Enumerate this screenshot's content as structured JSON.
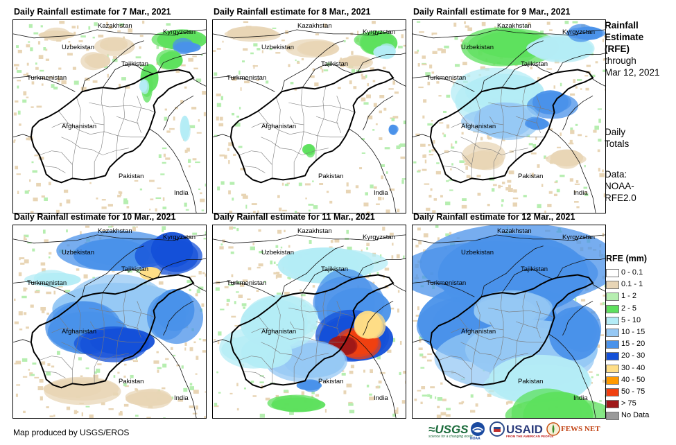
{
  "panels": [
    {
      "id": "p1",
      "title": "Daily Rainfall estimate for 7 Mar., 2021",
      "intensity": 0
    },
    {
      "id": "p2",
      "title": "Daily Rainfall estimate for 8 Mar., 2021",
      "intensity": 1
    },
    {
      "id": "p3",
      "title": "Daily Rainfall estimate for 9 Mar., 2021",
      "intensity": 2
    },
    {
      "id": "p4",
      "title": "Daily Rainfall estimate for 10 Mar., 2021",
      "intensity": 3
    },
    {
      "id": "p5",
      "title": "Daily Rainfall estimate for 11 Mar., 2021",
      "intensity": 4
    },
    {
      "id": "p6",
      "title": "Daily Rainfall estimate for 12 Mar., 2021",
      "intensity": 5
    }
  ],
  "countries": {
    "kazakhstan": "Kazakhstan",
    "kyrgyzstan": "Kyrgyzstan",
    "uzbekistan": "Uzbekistan",
    "tajikistan": "Tajikistan",
    "turkmenistan": "Turkmenistan",
    "afghanistan": "Afghanistan",
    "pakistan": "Pakistan",
    "india": "India"
  },
  "side": {
    "title_line1": "Rainfall",
    "title_line2": "Estimate",
    "title_line3": "(RFE)",
    "through_line1": "through",
    "through_line2": "Mar 12, 2021",
    "daily_line1": "Daily",
    "daily_line2": "Totals",
    "data_line1": "Data:",
    "data_line2": "NOAA-",
    "data_line3": "RFE2.0"
  },
  "legend": {
    "title": "RFE (mm)",
    "items": [
      {
        "label": "0 - 0.1",
        "color": "#ffffff"
      },
      {
        "label": "0.1 - 1",
        "color": "#e8d5b5"
      },
      {
        "label": "1 - 2",
        "color": "#b6eeb0"
      },
      {
        "label": "2 - 5",
        "color": "#5ee05e"
      },
      {
        "label": "5 - 10",
        "color": "#b4ecf6"
      },
      {
        "label": "10 - 15",
        "color": "#96c8f4"
      },
      {
        "label": "15 - 20",
        "color": "#4a92ea"
      },
      {
        "label": "20 - 30",
        "color": "#1450d8"
      },
      {
        "label": "30 - 40",
        "color": "#ffde86"
      },
      {
        "label": "40 - 50",
        "color": "#ff9a00"
      },
      {
        "label": "50 - 75",
        "color": "#f04010"
      },
      {
        "label": "> 75",
        "color": "#a01818"
      },
      {
        "label": "No Data",
        "color": "#9a9a9a"
      }
    ]
  },
  "credit": "Map produced by USGS/EROS",
  "logos": {
    "usgs": "≈USGS",
    "usgs_tagline": "science for a changing world",
    "noaa": "NOAA",
    "usaid": "USAID",
    "usaid_tagline": "FROM THE AMERICAN PEOPLE",
    "fewsnet": "FEWS NET"
  }
}
